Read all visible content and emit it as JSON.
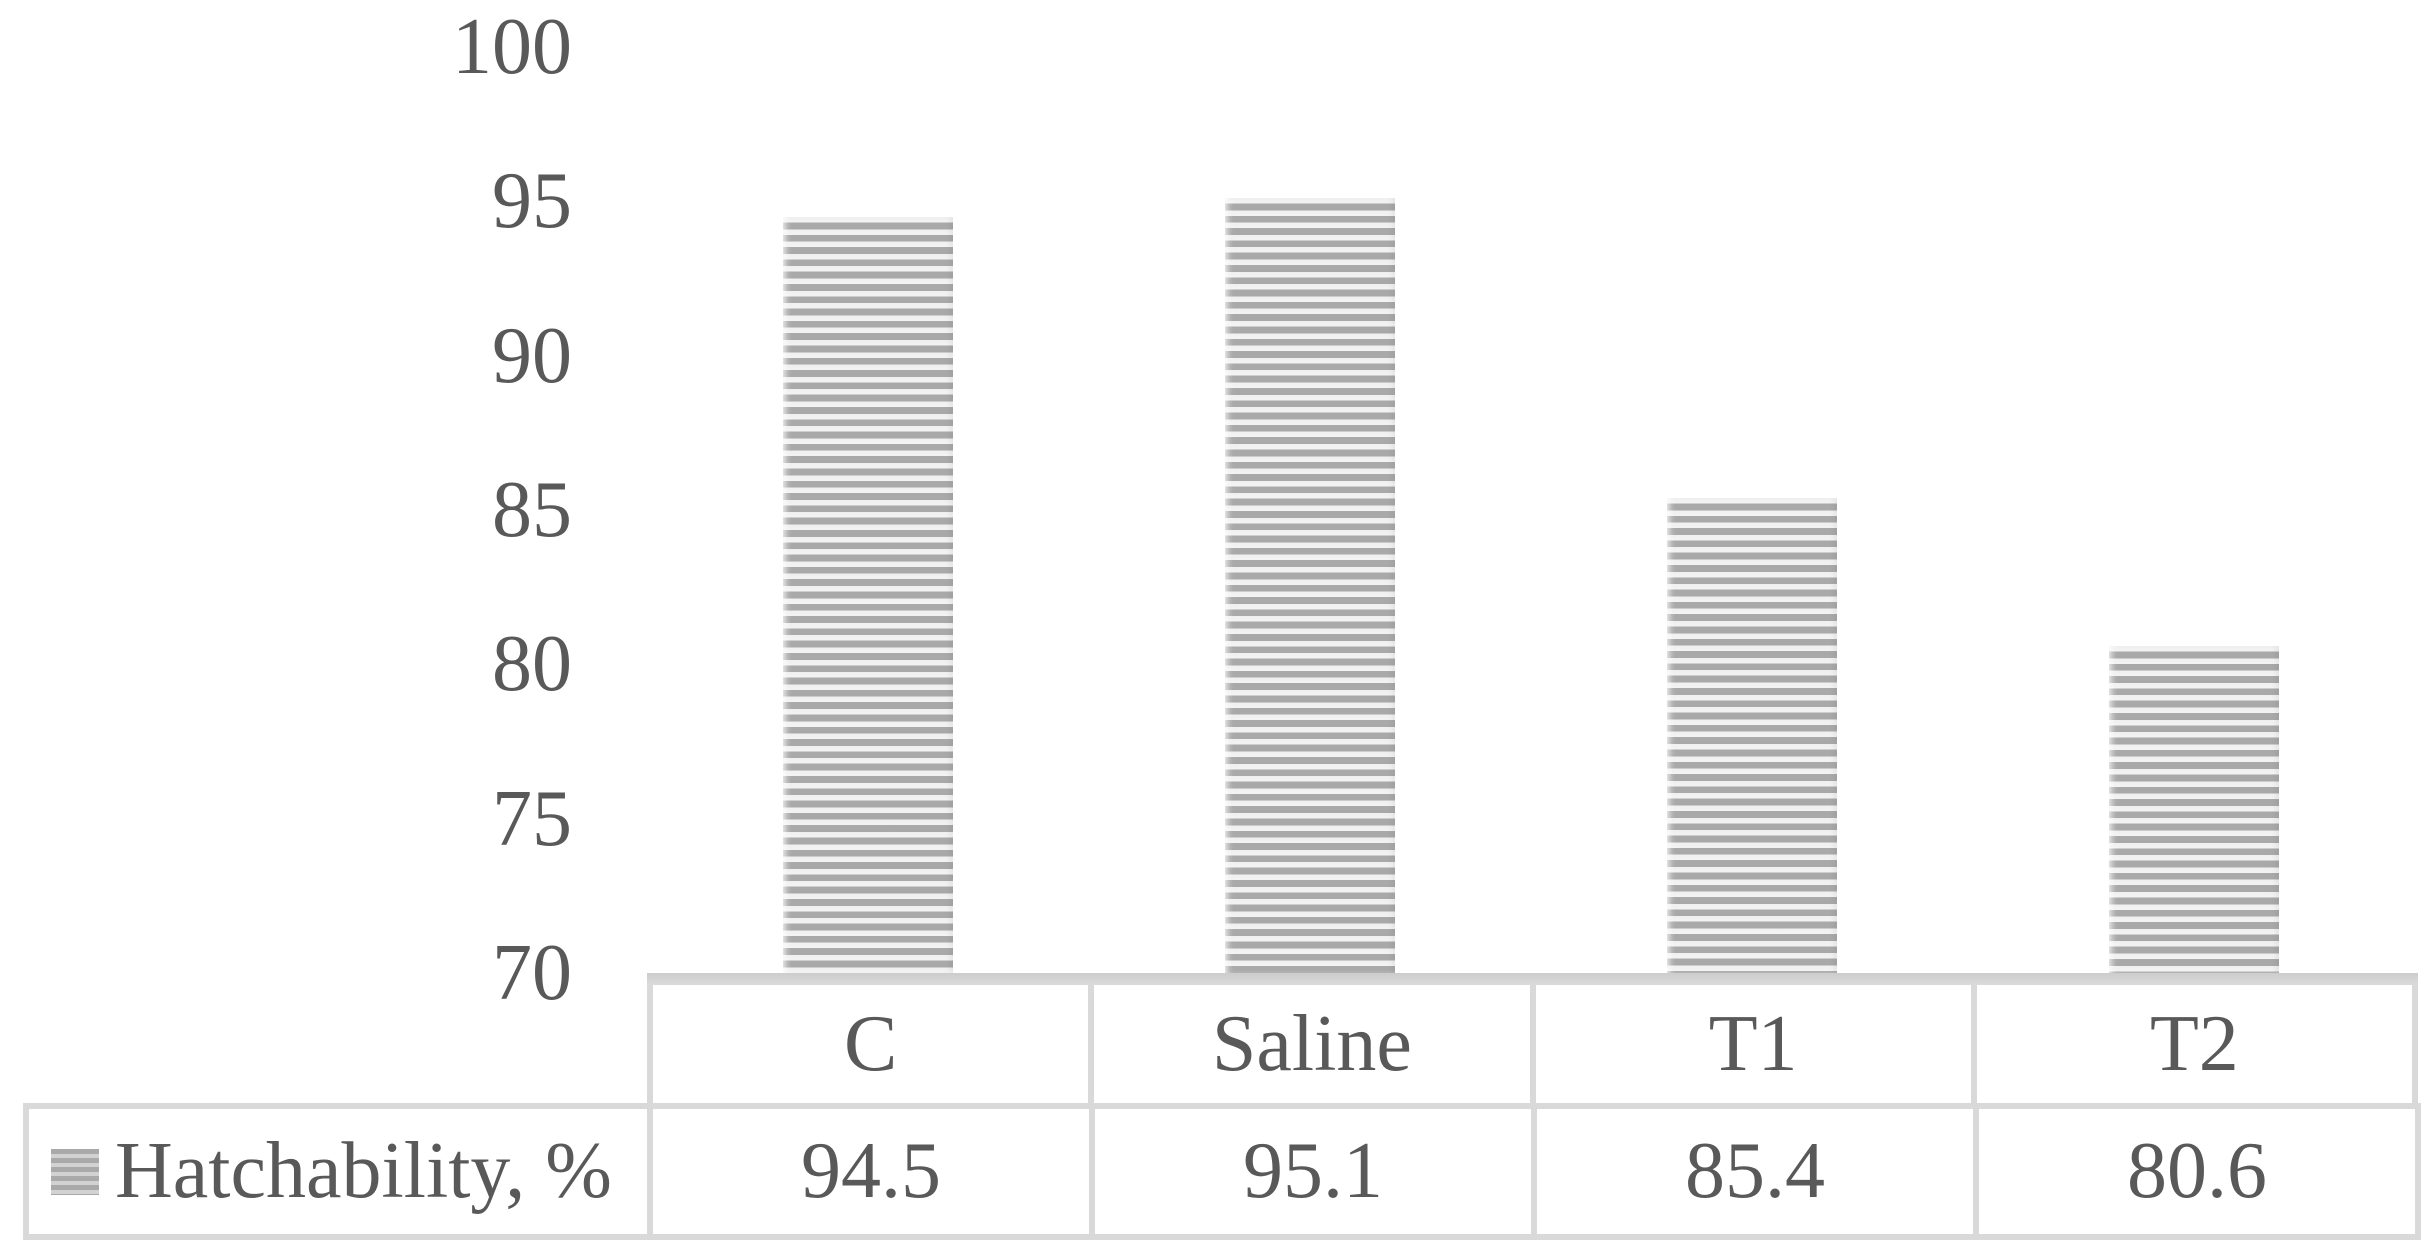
{
  "chart_data": {
    "type": "bar",
    "categories": [
      "C",
      "Saline",
      "T1",
      "T2"
    ],
    "series": [
      {
        "name": "Hatchability, %",
        "values": [
          94.5,
          95.1,
          85.4,
          80.6
        ]
      }
    ],
    "title": "",
    "xlabel": "",
    "ylabel": "",
    "ylim": [
      70,
      100
    ],
    "yticks": [
      100,
      95,
      90,
      85,
      80,
      75,
      70
    ],
    "grid": false,
    "legend_position": "data-table-row-header",
    "bar_fill_pattern": "horizontal-stripes",
    "colors": {
      "bar_stripe_gray": "#a9a9a9",
      "bar_stripe_light": "#f0f0f0",
      "text": "#595959",
      "table_border": "#d9d9d9",
      "axis_line": "#d2d2d2",
      "background": "#ffffff"
    }
  },
  "data_table": {
    "row_label": "Hatchability, %",
    "columns": [
      "C",
      "Saline",
      "T1",
      "T2"
    ],
    "values": [
      "94.5",
      "95.1",
      "85.4",
      "80.6"
    ]
  }
}
